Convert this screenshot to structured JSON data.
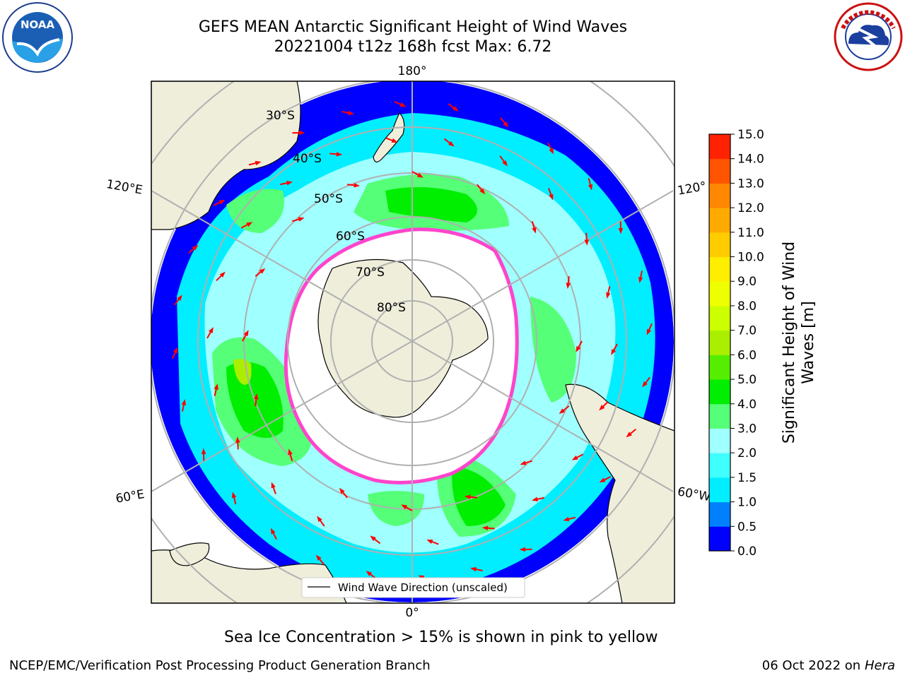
{
  "header": {
    "title_line1": "GEFS MEAN Antarctic Significant Height of Wind Waves",
    "title_line2": "20221004 t12z 168h fcst   Max: 6.72"
  },
  "logos": {
    "noaa": {
      "text": "NOAA",
      "icon": "noaa-logo-icon"
    },
    "nws": {
      "icon": "nws-logo-icon"
    }
  },
  "map": {
    "projection": "south-polar-stereographic",
    "longitude_labels": [
      "180°",
      "120°E",
      "120°",
      "60°E",
      "60°W",
      "0°"
    ],
    "latitude_labels": [
      "30°S",
      "40°S",
      "50°S",
      "60°S",
      "70°S",
      "80°S"
    ],
    "legend_label": "Wind Wave Direction (unscaled)",
    "colors": {
      "land": "#efeedb",
      "ice": "#ffffff",
      "ice_edge": "#ff44cc",
      "arrow": "#ff0000"
    }
  },
  "colorbar": {
    "label": "Significant Height of Wind Waves [m]",
    "ticks": [
      "0.0",
      "0.5",
      "1.0",
      "1.5",
      "2.0",
      "3.0",
      "4.0",
      "5.0",
      "6.0",
      "7.0",
      "8.0",
      "9.0",
      "10.0",
      "11.0",
      "12.0",
      "13.0",
      "14.0",
      "15.0"
    ],
    "colors": [
      "#0000ff",
      "#0080ff",
      "#00eeff",
      "#40ffff",
      "#a0ffff",
      "#55ff77",
      "#00ee00",
      "#55ee00",
      "#aaee00",
      "#ccff00",
      "#eeff00",
      "#ffee00",
      "#ffcc00",
      "#ffaa00",
      "#ff8800",
      "#ff5500",
      "#ff2200"
    ]
  },
  "caption": "Sea Ice Concentration > 15% is shown in pink to yellow",
  "footer": {
    "left": "NCEP/EMC/Verification Post Processing Product Generation Branch",
    "right_date": "06 Oct 2022 on ",
    "right_host": "Hera"
  }
}
